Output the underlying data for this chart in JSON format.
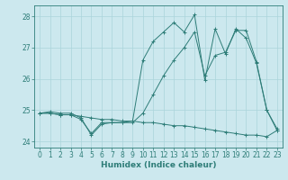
{
  "xlabel": "Humidex (Indice chaleur)",
  "xlim": [
    -0.5,
    23.5
  ],
  "ylim": [
    23.8,
    28.35
  ],
  "yticks": [
    24,
    25,
    26,
    27,
    28
  ],
  "xticks": [
    0,
    1,
    2,
    3,
    4,
    5,
    6,
    7,
    8,
    9,
    10,
    11,
    12,
    13,
    14,
    15,
    16,
    17,
    18,
    19,
    20,
    21,
    22,
    23
  ],
  "bg_color": "#cce8ee",
  "line_color": "#2e7d78",
  "grid_color": "#aad4db",
  "lines": [
    {
      "x": [
        0,
        1,
        2,
        3,
        4,
        5,
        6,
        7,
        8,
        9,
        10,
        11,
        12,
        13,
        14,
        15,
        16,
        17,
        18,
        19,
        20,
        21,
        22,
        23
      ],
      "y": [
        24.9,
        24.95,
        24.9,
        24.9,
        24.75,
        24.2,
        24.55,
        24.6,
        24.6,
        24.65,
        26.6,
        27.2,
        27.5,
        27.8,
        27.5,
        28.05,
        25.95,
        27.6,
        26.8,
        27.6,
        27.3,
        26.5,
        25.0,
        24.35
      ]
    },
    {
      "x": [
        0,
        1,
        2,
        3,
        4,
        5,
        6,
        7,
        8,
        9,
        10,
        11,
        12,
        13,
        14,
        15,
        16,
        17,
        18,
        19,
        20,
        21,
        22,
        23
      ],
      "y": [
        24.9,
        24.9,
        24.85,
        24.85,
        24.7,
        24.25,
        24.6,
        24.6,
        24.6,
        24.6,
        24.9,
        25.5,
        26.1,
        26.6,
        27.0,
        27.5,
        26.1,
        26.75,
        26.85,
        27.55,
        27.55,
        26.55,
        25.0,
        24.4
      ]
    },
    {
      "x": [
        0,
        1,
        2,
        3,
        4,
        5,
        6,
        7,
        8,
        9,
        10,
        11,
        12,
        13,
        14,
        15,
        16,
        17,
        18,
        19,
        20,
        21,
        22,
        23
      ],
      "y": [
        24.9,
        24.9,
        24.85,
        24.85,
        24.8,
        24.75,
        24.7,
        24.7,
        24.65,
        24.65,
        24.6,
        24.6,
        24.55,
        24.5,
        24.5,
        24.45,
        24.4,
        24.35,
        24.3,
        24.25,
        24.2,
        24.2,
        24.15,
        24.35
      ]
    }
  ]
}
